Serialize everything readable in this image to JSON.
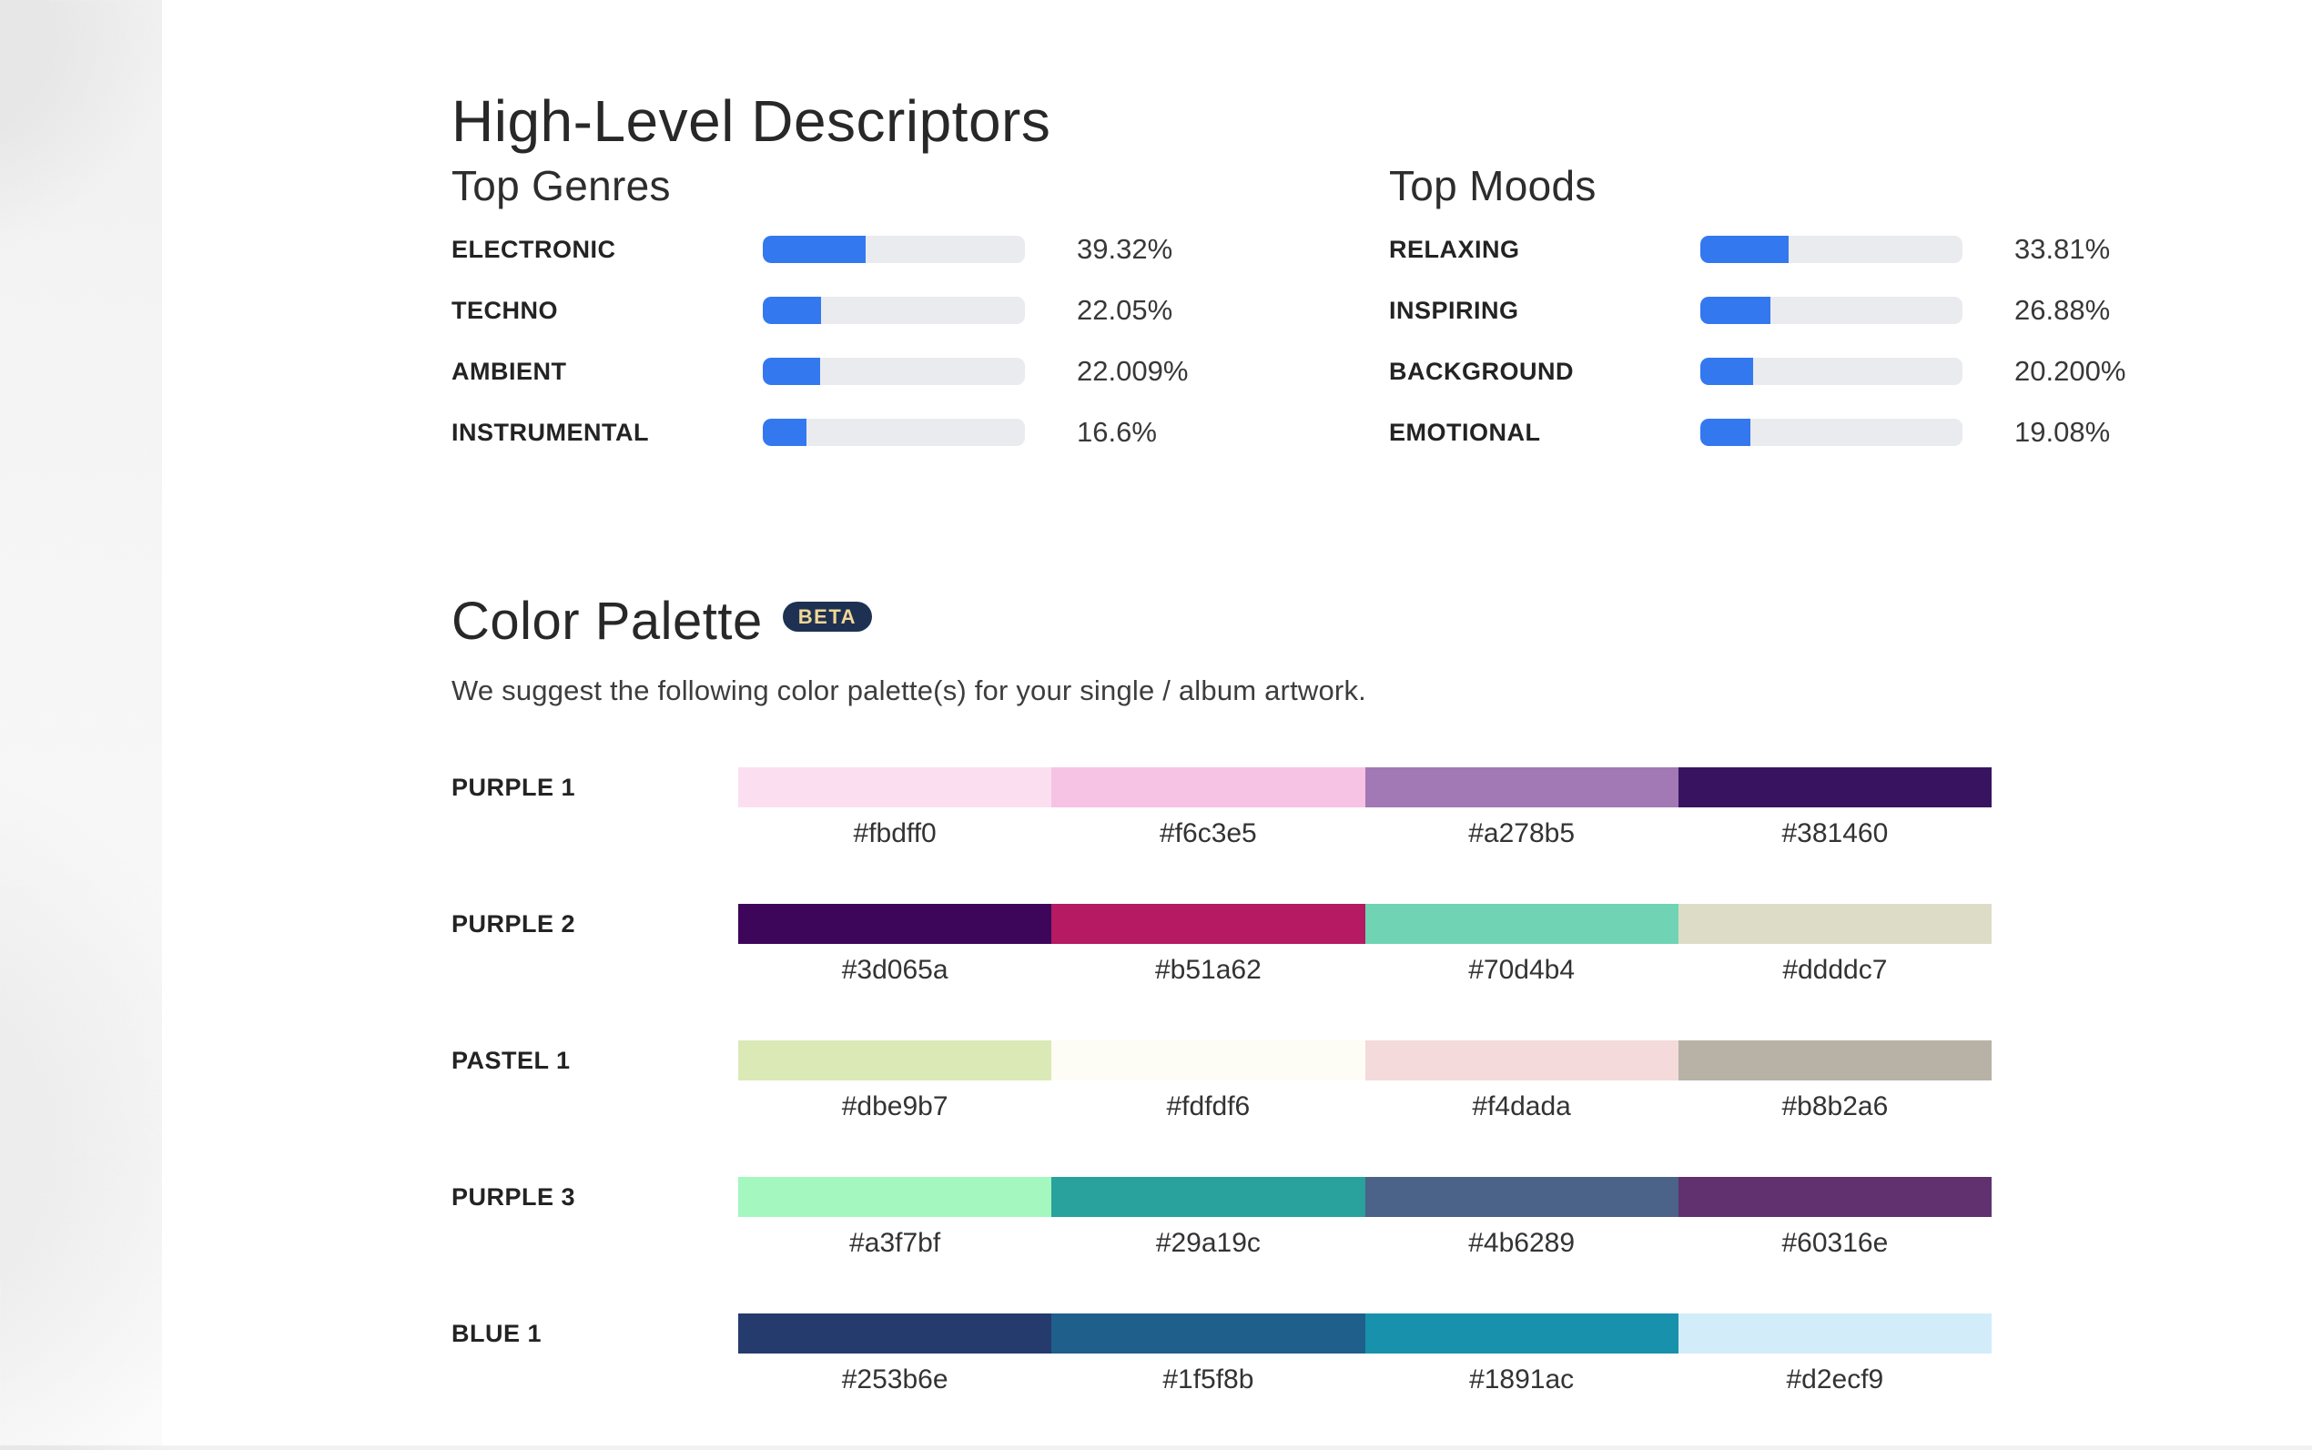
{
  "title": "High-Level Descriptors",
  "genres": {
    "heading": "Top Genres",
    "items": [
      {
        "label": "ELECTRONIC",
        "value": "39.32%"
      },
      {
        "label": "TECHNO",
        "value": "22.05%"
      },
      {
        "label": "AMBIENT",
        "value": "22.009%"
      },
      {
        "label": "INSTRUMENTAL",
        "value": "16.6%"
      }
    ]
  },
  "moods": {
    "heading": "Top Moods",
    "items": [
      {
        "label": "RELAXING",
        "value": "33.81%"
      },
      {
        "label": "INSPIRING",
        "value": "26.88%"
      },
      {
        "label": "BACKGROUND",
        "value": "20.200%"
      },
      {
        "label": "EMOTIONAL",
        "value": "19.08%"
      }
    ]
  },
  "palette": {
    "heading": "Color Palette",
    "badge": "BETA",
    "subtitle": "We suggest the following color palette(s) for your single / album artwork.",
    "rows": [
      {
        "label": "PURPLE 1",
        "colors": [
          "#fbdff0",
          "#f6c3e5",
          "#a278b5",
          "#381460"
        ]
      },
      {
        "label": "PURPLE 2",
        "colors": [
          "#3d065a",
          "#b51a62",
          "#70d4b4",
          "#ddddc7"
        ]
      },
      {
        "label": "PASTEL 1",
        "colors": [
          "#dbe9b7",
          "#fdfdf6",
          "#f4dada",
          "#b8b2a6"
        ]
      },
      {
        "label": "PURPLE 3",
        "colors": [
          "#a3f7bf",
          "#29a19c",
          "#4b6289",
          "#60316e"
        ]
      },
      {
        "label": "BLUE 1",
        "colors": [
          "#253b6e",
          "#1f5f8b",
          "#1891ac",
          "#d2ecf9"
        ]
      }
    ]
  },
  "colors": {
    "bar_fill": "#3478f0",
    "bar_track": "#e9ebee",
    "badge_bg": "#1e3153",
    "badge_text": "#f1d795"
  }
}
